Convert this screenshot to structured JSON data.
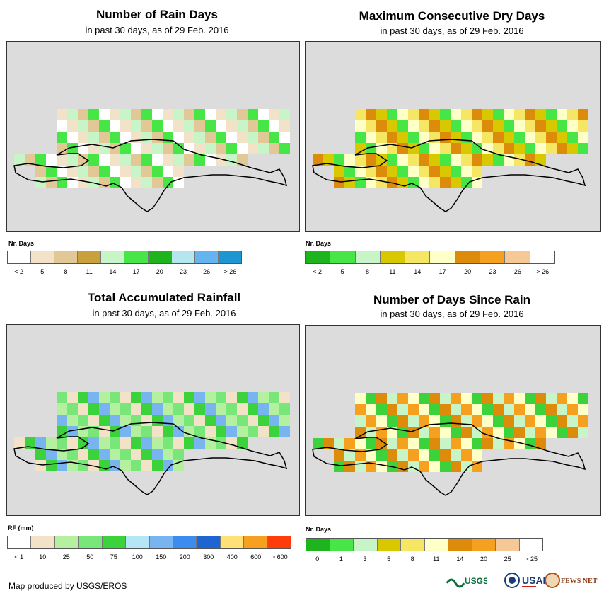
{
  "panels": [
    {
      "title": "Number of Rain Days",
      "subtitle": "in past 30 days, as of 29 Feb. 2016",
      "legend_title": "Nr. Days",
      "legend_colors": [
        "#ffffff",
        "#f2e2c8",
        "#e1c896",
        "#c8a03c",
        "#c8f5c8",
        "#46e646",
        "#1eb41e",
        "#b4e6f0",
        "#64b4f0",
        "#1e96d2"
      ],
      "legend_labels": [
        "< 2",
        "5",
        "8",
        "11",
        "14",
        "17",
        "20",
        "23",
        "26",
        "> 26"
      ],
      "map_icon": "hispaniola-grid-map"
    },
    {
      "title": "Maximum Consecutive Dry Days",
      "subtitle": "in past 30 days, as of 29 Feb. 2016",
      "legend_title": "Nr. Days",
      "legend_colors": [
        "#1eb41e",
        "#46e646",
        "#c8f5c8",
        "#d7c800",
        "#f5e664",
        "#ffffc8",
        "#dc8c0a",
        "#f5a01e",
        "#f5c896",
        "#ffffff"
      ],
      "legend_labels": [
        "< 2",
        "5",
        "8",
        "11",
        "14",
        "17",
        "20",
        "23",
        "26",
        "> 26"
      ],
      "map_icon": "hispaniola-grid-map"
    },
    {
      "title": "Total Accumulated Rainfall",
      "subtitle": "in past 30 days, as of 29 Feb. 2016",
      "legend_title": "RF (mm)",
      "legend_colors": [
        "#ffffff",
        "#f2e2c8",
        "#b4f0a0",
        "#78e678",
        "#3cd23c",
        "#b4e6f5",
        "#78b4f0",
        "#3c8cf0",
        "#1e64d2",
        "#ffe178",
        "#f5a01e",
        "#ff3c0a"
      ],
      "legend_labels": [
        "< 1",
        "10",
        "25",
        "50",
        "75",
        "100",
        "150",
        "200",
        "300",
        "400",
        "600",
        "> 600"
      ],
      "map_icon": "hispaniola-grid-map"
    },
    {
      "title": "Number of Days Since Rain",
      "subtitle": "in past 30 days, as of 29 Feb. 2016",
      "legend_title": "Nr. Days",
      "legend_colors": [
        "#1eb41e",
        "#46e646",
        "#c8f5c8",
        "#d7c800",
        "#f5e664",
        "#ffffc8",
        "#dc8c0a",
        "#f5a01e",
        "#f5c896",
        "#ffffff"
      ],
      "legend_labels": [
        "0",
        "1",
        "3",
        "5",
        "8",
        "11",
        "14",
        "20",
        "25",
        "> 25"
      ],
      "map_icon": "hispaniola-grid-map"
    }
  ],
  "footer": "Map produced by USGS/EROS",
  "logos": {
    "usgs": "USGS",
    "usaid": "USAID",
    "fewsnet": "FEWS NET"
  }
}
